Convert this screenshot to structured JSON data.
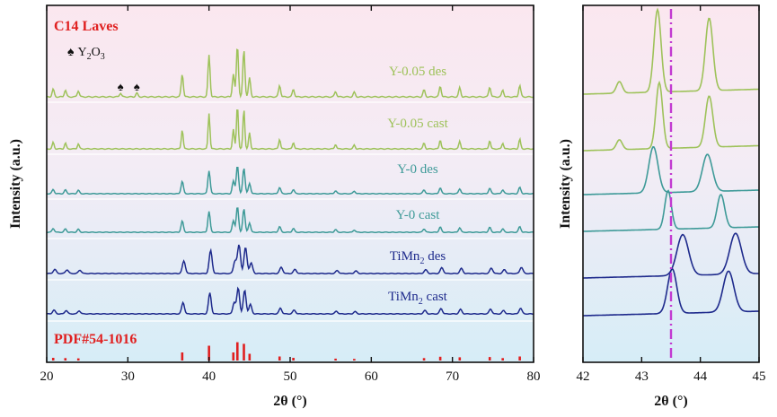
{
  "colors": {
    "y005": "#9ec25a",
    "y0": "#3e9a98",
    "timn2": "#1e2a8c",
    "pdf": "#e02020",
    "dashline": "#c23ad1"
  },
  "chart_data": [
    {
      "type": "line",
      "panel": "main",
      "xlabel": "2θ (°)",
      "ylabel": "Intensity (a.u.)",
      "xlim": [
        20,
        80
      ],
      "xticks": [
        "20",
        "30",
        "40",
        "50",
        "60",
        "70",
        "80"
      ],
      "annotations": {
        "phase_title": "C14 Laves",
        "y2o3_marker": "♠",
        "y2o3_label": "Y",
        "y2o3_sub1": "2",
        "y2o3_mid": "O",
        "y2o3_sub2": "3",
        "pdf_label": "PDF#54-1016"
      },
      "series": [
        {
          "key": "y005des",
          "name": "Y-0.05 des",
          "label_parts": [
            "Y-0.05 des"
          ],
          "colorKey": "y005"
        },
        {
          "key": "y005cast",
          "name": "Y-0.05 cast",
          "label_parts": [
            "Y-0.05 cast"
          ],
          "colorKey": "y005"
        },
        {
          "key": "y0des",
          "name": "Y-0 des",
          "label_parts": [
            "Y-0 des"
          ],
          "colorKey": "y0"
        },
        {
          "key": "y0cast",
          "name": "Y-0 cast",
          "label_parts": [
            "Y-0 cast"
          ],
          "colorKey": "y0"
        },
        {
          "key": "timn2des",
          "name": "TiMn2 des",
          "label_parts": [
            "TiMn",
            "2",
            " des"
          ],
          "colorKey": "timn2"
        },
        {
          "key": "timn2cast",
          "name": "TiMn2 cast",
          "label_parts": [
            "TiMn",
            "2",
            " cast"
          ],
          "colorKey": "timn2"
        }
      ],
      "y2o3_peaks": [
        29.1,
        31.1
      ],
      "pdf_sticks": [
        {
          "x": 20.8,
          "h": 0.1
        },
        {
          "x": 22.3,
          "h": 0.09
        },
        {
          "x": 23.9,
          "h": 0.08
        },
        {
          "x": 36.7,
          "h": 0.3
        },
        {
          "x": 40.0,
          "h": 0.55
        },
        {
          "x": 43.0,
          "h": 0.3
        },
        {
          "x": 43.5,
          "h": 0.68
        },
        {
          "x": 44.3,
          "h": 0.62
        },
        {
          "x": 45.0,
          "h": 0.25
        },
        {
          "x": 48.7,
          "h": 0.15
        },
        {
          "x": 50.4,
          "h": 0.1
        },
        {
          "x": 55.6,
          "h": 0.07
        },
        {
          "x": 57.9,
          "h": 0.06
        },
        {
          "x": 66.5,
          "h": 0.09
        },
        {
          "x": 68.5,
          "h": 0.14
        },
        {
          "x": 70.9,
          "h": 0.12
        },
        {
          "x": 74.6,
          "h": 0.13
        },
        {
          "x": 76.2,
          "h": 0.09
        },
        {
          "x": 78.3,
          "h": 0.15
        }
      ]
    },
    {
      "type": "line",
      "panel": "zoom",
      "xlabel": "2θ (°)",
      "ylabel": "Intensity (a.u.)",
      "xlim": [
        42,
        45
      ],
      "xticks": [
        "42",
        "43",
        "44",
        "45"
      ],
      "reference_line_x": 43.5,
      "series": [
        {
          "key": "y005des",
          "name": "Y-0.05 des",
          "colorKey": "y005"
        },
        {
          "key": "y005cast",
          "name": "Y-0.05 cast",
          "colorKey": "y005"
        },
        {
          "key": "y0des",
          "name": "Y-0 des",
          "colorKey": "y0"
        },
        {
          "key": "y0cast",
          "name": "Y-0 cast",
          "colorKey": "y0"
        },
        {
          "key": "timn2des",
          "name": "TiMn2 des",
          "colorKey": "timn2"
        },
        {
          "key": "timn2cast",
          "name": "TiMn2 cast",
          "colorKey": "timn2"
        }
      ]
    }
  ]
}
